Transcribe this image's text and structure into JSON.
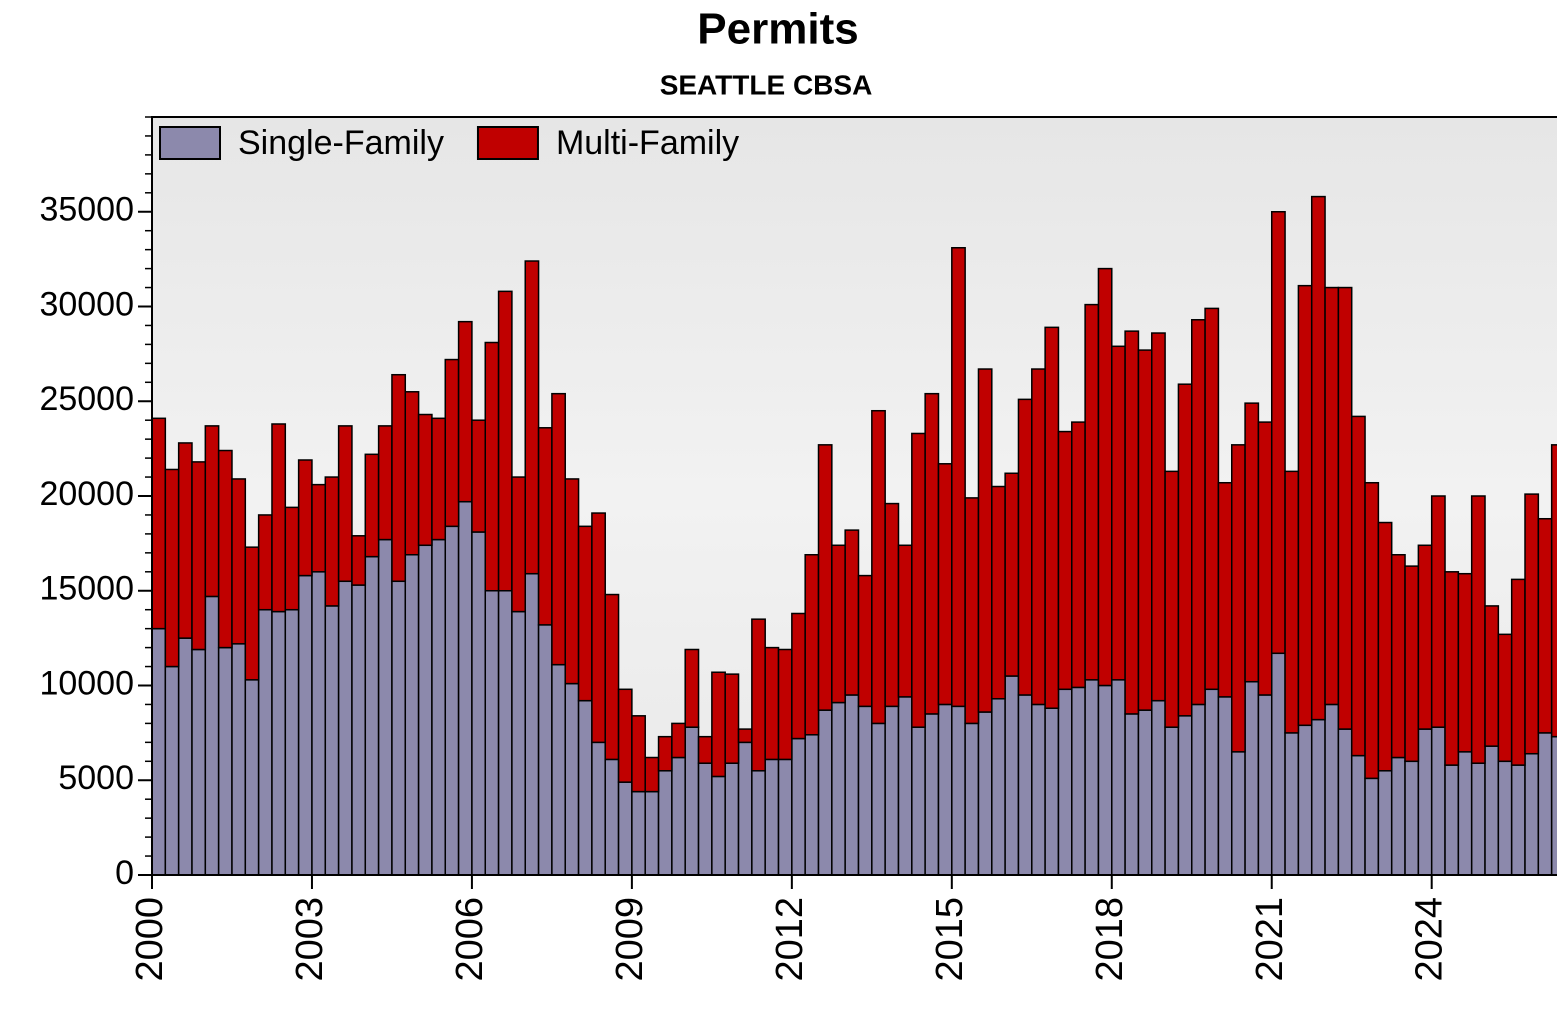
{
  "chart_data": {
    "type": "stacked_bar",
    "title": "Permits",
    "subtitle": "SEATTLE CBSA",
    "x": [
      2000,
      2000.25,
      2000.5,
      2000.75,
      2001,
      2001.25,
      2001.5,
      2001.75,
      2002,
      2002.25,
      2002.5,
      2002.75,
      2003,
      2003.25,
      2003.5,
      2003.75,
      2004,
      2004.25,
      2004.5,
      2004.75,
      2005,
      2005.25,
      2005.5,
      2005.75,
      2006,
      2006.25,
      2006.5,
      2006.75,
      2007,
      2007.25,
      2007.5,
      2007.75,
      2008,
      2008.25,
      2008.5,
      2008.75,
      2009,
      2009.25,
      2009.5,
      2009.75,
      2010,
      2010.25,
      2010.5,
      2010.75,
      2011,
      2011.25,
      2011.5,
      2011.75,
      2012,
      2012.25,
      2012.5,
      2012.75,
      2013,
      2013.25,
      2013.5,
      2013.75,
      2014,
      2014.25,
      2014.5,
      2014.75,
      2015,
      2015.25,
      2015.5,
      2015.75,
      2016,
      2016.25,
      2016.5,
      2016.75,
      2017,
      2017.25,
      2017.5,
      2017.75,
      2018,
      2018.25,
      2018.5,
      2018.75,
      2019,
      2019.25,
      2019.5,
      2019.75,
      2020,
      2020.25,
      2020.5,
      2020.75,
      2021,
      2021.25,
      2021.5,
      2021.75,
      2022,
      2022.25,
      2022.5,
      2022.75,
      2023,
      2023.25,
      2023.5,
      2023.75,
      2024,
      2024.25,
      2024.5,
      2024.75,
      2025,
      2025.25,
      2025.5,
      2025.75,
      2026,
      2026.25
    ],
    "bar_width": 0.25,
    "series": [
      {
        "name": "Single-Family",
        "color": "#8c89ac",
        "values": [
          13000,
          11000,
          12500,
          11900,
          14700,
          12000,
          12200,
          10300,
          14000,
          13900,
          14000,
          15800,
          16000,
          14200,
          15500,
          15300,
          16800,
          17700,
          15500,
          16900,
          17400,
          17700,
          18400,
          19700,
          18100,
          15000,
          15000,
          13900,
          15900,
          13200,
          11100,
          10100,
          9200,
          7000,
          6100,
          4900,
          4400,
          4400,
          5500,
          6200,
          7800,
          5900,
          5200,
          5900,
          7000,
          5500,
          6100,
          6100,
          7200,
          7400,
          8700,
          9100,
          9500,
          8900,
          8000,
          8900,
          9400,
          7800,
          8500,
          9000,
          8900,
          8000,
          8600,
          9300,
          10500,
          9500,
          9000,
          8800,
          9800,
          9900,
          10300,
          10000,
          10300,
          8500,
          8700,
          9200,
          7800,
          8400,
          9000,
          9800,
          9400,
          6500,
          10200,
          9500,
          11700,
          7500,
          7900,
          8200,
          9000,
          7700,
          6300,
          5100,
          5500,
          6200,
          6000,
          7700,
          7800,
          5800,
          6500,
          5900,
          6800,
          6000,
          5800,
          6400,
          7500,
          7300
        ]
      },
      {
        "name": "Multi-Family",
        "color": "#c00000",
        "values": [
          11100,
          10400,
          10300,
          9900,
          9000,
          10400,
          8700,
          7000,
          5000,
          9900,
          5400,
          6100,
          4600,
          6800,
          8200,
          2600,
          5400,
          6000,
          10900,
          8600,
          6900,
          6400,
          8800,
          9500,
          5900,
          13100,
          15800,
          7100,
          16500,
          10400,
          14300,
          10800,
          9200,
          12100,
          8700,
          4900,
          4000,
          1800,
          1800,
          1800,
          4100,
          1400,
          5500,
          4700,
          700,
          8000,
          5900,
          5800,
          6600,
          9500,
          14000,
          8300,
          8700,
          6900,
          16500,
          10700,
          8000,
          15500,
          16900,
          12700,
          24200,
          11900,
          18100,
          11200,
          10700,
          15600,
          17700,
          20100,
          13600,
          14000,
          19800,
          22000,
          17600,
          20200,
          19000,
          19400,
          13500,
          17500,
          20300,
          20100,
          11300,
          16200,
          14700,
          14400,
          23300,
          13800,
          23200,
          27600,
          22000,
          23300,
          17900,
          15600,
          13100,
          10700,
          10300,
          9700,
          12200,
          10200,
          9400,
          14100,
          7400,
          6700,
          9800,
          13700,
          11300,
          15400
        ]
      }
    ],
    "xlim": [
      2000,
      2026.5
    ],
    "xticks": [
      2000,
      2003,
      2006,
      2009,
      2012,
      2015,
      2018,
      2021,
      2024
    ],
    "ylim": [
      0,
      40000
    ],
    "yticks": [
      0,
      5000,
      10000,
      15000,
      20000,
      25000,
      30000,
      35000
    ],
    "legend": "top-left"
  }
}
